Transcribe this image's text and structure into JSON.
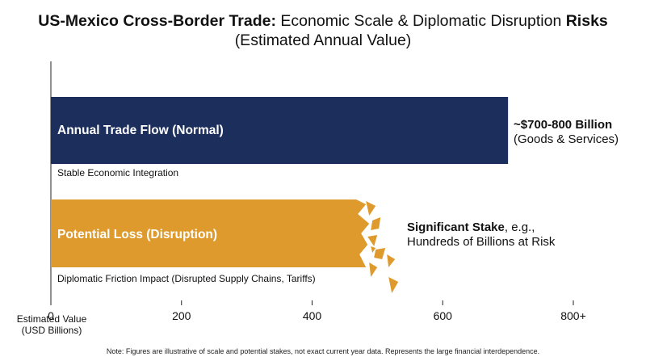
{
  "header": {
    "title_bold_1": "US-Mexico Cross-Border Trade:",
    "title_regular": " Economic Scale & Diplomatic Disruption ",
    "title_bold_2": "Risks",
    "subtitle": "(Estimated Annual Value)"
  },
  "chart_data": {
    "type": "bar",
    "orientation": "horizontal",
    "categories": [
      "Annual Trade Flow (Normal)",
      "Potential Loss (Disruption)"
    ],
    "values": [
      700,
      480
    ],
    "bar_sublabels": [
      "Stable Economic Integration",
      "Diplomatic Friction Impact (Disrupted Supply Chains, Tariffs)"
    ],
    "colors": [
      "#1c2f5c",
      "#de9a2c"
    ],
    "xlabel": "Estimated Value\n(USD Billions)",
    "xlim": [
      0,
      800
    ],
    "xticks": [
      0,
      200,
      400,
      600,
      800
    ],
    "xtick_labels": [
      "0",
      "200",
      "400",
      "600",
      "800+"
    ],
    "grid": false,
    "annotations": [
      {
        "bold": "~$700-800 Billion",
        "text": "(Goods & Services)"
      },
      {
        "bold": "Significant Stake",
        "text_inline": ", e.g.,",
        "text": "Hundreds of Billions at Risk"
      }
    ]
  },
  "footer": {
    "note": "Note: Figures are illustrative of scale and potential stakes, not exact current year data. Represents the large financial interdependence."
  }
}
